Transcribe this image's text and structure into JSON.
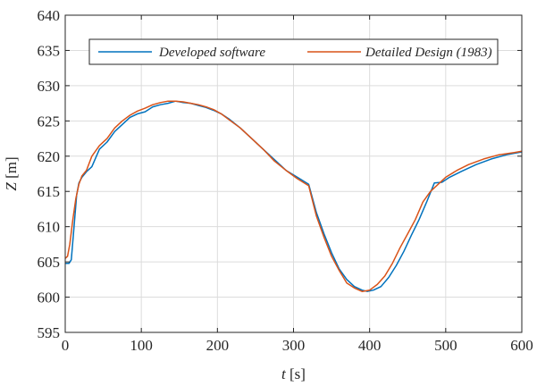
{
  "chart_data": {
    "type": "line",
    "xlabel_var": "t",
    "xlabel_unit": "[s]",
    "ylabel_var": "Z",
    "ylabel_unit": "[m]",
    "xlim": [
      0,
      600
    ],
    "ylim": [
      595,
      640
    ],
    "xticks": [
      0,
      100,
      200,
      300,
      400,
      500,
      600
    ],
    "yticks": [
      595,
      600,
      605,
      610,
      615,
      620,
      625,
      630,
      635,
      640
    ],
    "grid": true,
    "legend_position": "top",
    "series": [
      {
        "name": "Developed software",
        "color": "#0072BD",
        "x": [
          0,
          5,
          8,
          12,
          15,
          18,
          22,
          28,
          35,
          45,
          55,
          65,
          75,
          85,
          95,
          105,
          115,
          125,
          135,
          145,
          155,
          165,
          175,
          185,
          195,
          205,
          215,
          230,
          245,
          260,
          275,
          290,
          305,
          320,
          330,
          340,
          350,
          360,
          370,
          380,
          390,
          397,
          405,
          415,
          425,
          435,
          445,
          455,
          465,
          475,
          485,
          495,
          505,
          520,
          540,
          560,
          580,
          600
        ],
        "values": [
          604.8,
          604.8,
          605.3,
          610.5,
          614.5,
          616.2,
          617.0,
          617.8,
          618.5,
          621.0,
          622.0,
          623.5,
          624.5,
          625.5,
          626.0,
          626.3,
          627.0,
          627.3,
          627.5,
          627.8,
          627.6,
          627.5,
          627.2,
          626.9,
          626.5,
          626.0,
          625.3,
          624.0,
          622.5,
          621.0,
          619.5,
          618.0,
          617.0,
          616.0,
          612.0,
          609.0,
          606.3,
          604.0,
          602.5,
          601.5,
          601.0,
          600.8,
          601.0,
          601.5,
          602.8,
          604.5,
          606.5,
          608.8,
          611.0,
          613.5,
          616.2,
          616.3,
          617.0,
          617.8,
          618.8,
          619.6,
          620.2,
          620.6
        ]
      },
      {
        "name": "Detailed Design (1983)",
        "color": "#D95319",
        "x": [
          0,
          3,
          6,
          10,
          14,
          18,
          22,
          28,
          35,
          45,
          55,
          65,
          75,
          85,
          95,
          105,
          115,
          125,
          135,
          145,
          155,
          165,
          175,
          185,
          195,
          205,
          215,
          230,
          245,
          260,
          275,
          290,
          305,
          320,
          330,
          340,
          350,
          360,
          370,
          380,
          390,
          400,
          410,
          420,
          430,
          440,
          450,
          460,
          470,
          480,
          490,
          500,
          515,
          530,
          550,
          570,
          590,
          600
        ],
        "values": [
          605.5,
          605.8,
          607.5,
          611.0,
          614.0,
          616.0,
          617.2,
          618.0,
          620.0,
          621.5,
          622.5,
          624.0,
          625.0,
          625.8,
          626.4,
          626.8,
          627.3,
          627.6,
          627.8,
          627.8,
          627.7,
          627.5,
          627.3,
          627.0,
          626.6,
          626.0,
          625.2,
          624.0,
          622.5,
          621.0,
          619.3,
          618.0,
          616.8,
          615.8,
          611.5,
          608.5,
          605.8,
          603.8,
          602.0,
          601.3,
          600.8,
          601.0,
          601.8,
          603.0,
          604.8,
          607.0,
          609.0,
          611.0,
          613.5,
          615.0,
          616.0,
          617.0,
          618.0,
          618.8,
          619.6,
          620.2,
          620.5,
          620.7
        ]
      }
    ]
  }
}
